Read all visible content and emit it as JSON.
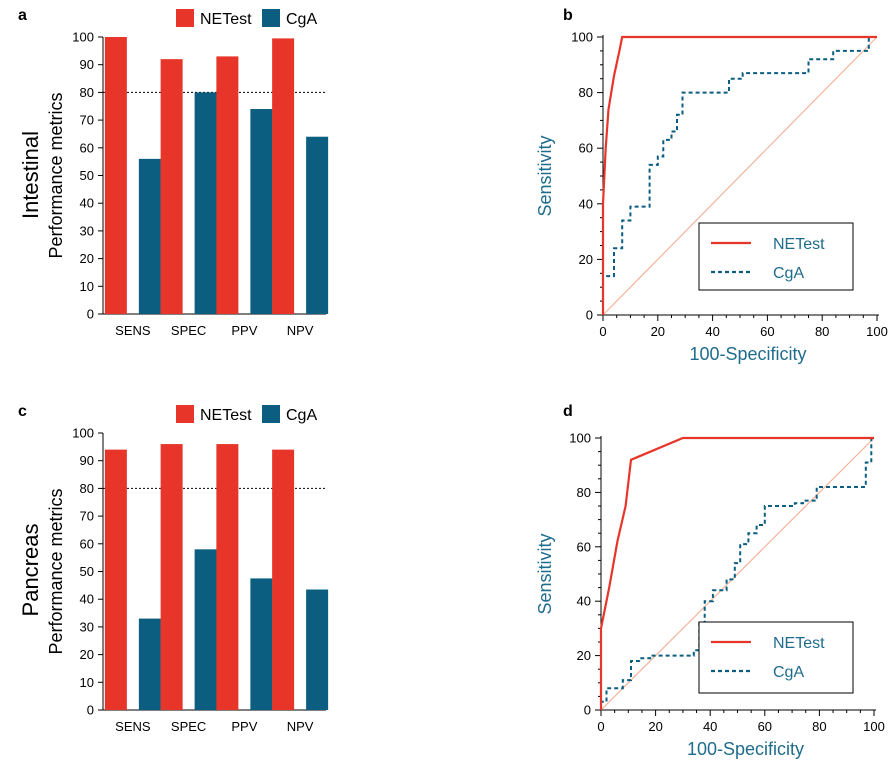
{
  "colors": {
    "netest": "#e8352a",
    "cga": "#0b5e80",
    "diag": "#f3b39c",
    "axis": "#000000",
    "roc_axis_text": "#1f6c8c"
  },
  "row_labels": [
    "Intestinal",
    "Pancreas"
  ],
  "chart_data": [
    {
      "panel": "a",
      "type": "bar",
      "categories": [
        "SENS",
        "SPEC",
        "PPV",
        "NPV"
      ],
      "series": [
        {
          "name": "NETest",
          "values": [
            100,
            92,
            93,
            99.5
          ]
        },
        {
          "name": "CgA",
          "values": [
            56,
            80,
            74,
            64
          ]
        }
      ],
      "ylabel": "Performance metrics",
      "ylim": [
        0,
        100
      ],
      "yticks": [
        0,
        10,
        20,
        30,
        40,
        50,
        60,
        70,
        80,
        90,
        100
      ],
      "reference_line": 80,
      "legend": "top"
    },
    {
      "panel": "b",
      "type": "line",
      "xlabel": "100-Specificity",
      "ylabel": "Sensitivity",
      "xlim": [
        0,
        100
      ],
      "ylim": [
        0,
        100
      ],
      "xticks": [
        0,
        20,
        40,
        60,
        80,
        100
      ],
      "yticks": [
        0,
        20,
        40,
        60,
        80,
        100
      ],
      "legend": "bottom-right",
      "series": [
        {
          "name": "NETest",
          "points": [
            [
              0,
              0
            ],
            [
              0,
              40
            ],
            [
              1,
              60
            ],
            [
              2,
              74
            ],
            [
              4,
              86
            ],
            [
              6,
              95
            ],
            [
              7,
              100
            ],
            [
              100,
              100
            ]
          ]
        },
        {
          "name": "CgA",
          "points": [
            [
              0,
              0
            ],
            [
              0,
              14
            ],
            [
              4,
              14
            ],
            [
              4,
              24
            ],
            [
              7,
              24
            ],
            [
              7,
              34
            ],
            [
              10,
              34
            ],
            [
              10,
              39
            ],
            [
              17,
              39
            ],
            [
              17,
              54
            ],
            [
              20,
              54
            ],
            [
              20,
              57
            ],
            [
              22,
              57
            ],
            [
              22,
              63
            ],
            [
              25,
              63
            ],
            [
              25,
              66
            ],
            [
              27,
              66
            ],
            [
              27,
              72
            ],
            [
              29,
              72
            ],
            [
              29,
              80
            ],
            [
              46,
              80
            ],
            [
              46,
              85
            ],
            [
              51,
              85
            ],
            [
              51,
              87
            ],
            [
              75,
              87
            ],
            [
              75,
              92
            ],
            [
              84,
              92
            ],
            [
              84,
              95
            ],
            [
              97,
              95
            ],
            [
              97,
              100
            ],
            [
              100,
              100
            ]
          ]
        },
        {
          "name": "",
          "points": [
            [
              0,
              0
            ],
            [
              100,
              100
            ]
          ]
        }
      ]
    },
    {
      "panel": "c",
      "type": "bar",
      "categories": [
        "SENS",
        "SPEC",
        "PPV",
        "NPV"
      ],
      "series": [
        {
          "name": "NETest",
          "values": [
            94,
            96,
            96,
            94
          ]
        },
        {
          "name": "CgA",
          "values": [
            33,
            58,
            47.5,
            43.5
          ]
        }
      ],
      "ylabel": "Performance metrics",
      "ylim": [
        0,
        100
      ],
      "yticks": [
        0,
        10,
        20,
        30,
        40,
        50,
        60,
        70,
        80,
        90,
        100
      ],
      "reference_line": 80,
      "legend": "top"
    },
    {
      "panel": "d",
      "type": "line",
      "xlabel": "100-Specificity",
      "ylabel": "Sensitivity",
      "xlim": [
        0,
        100
      ],
      "ylim": [
        0,
        100
      ],
      "xticks": [
        0,
        20,
        40,
        60,
        80,
        100
      ],
      "yticks": [
        0,
        20,
        40,
        60,
        80,
        100
      ],
      "legend": "bottom-right",
      "series": [
        {
          "name": "NETest",
          "points": [
            [
              0,
              0
            ],
            [
              0,
              30
            ],
            [
              3,
              45
            ],
            [
              6,
              62
            ],
            [
              9,
              75
            ],
            [
              11,
              92
            ],
            [
              30,
              100
            ],
            [
              100,
              100
            ]
          ]
        },
        {
          "name": "CgA",
          "points": [
            [
              0,
              0
            ],
            [
              0,
              3
            ],
            [
              2,
              3
            ],
            [
              2,
              8
            ],
            [
              8,
              8
            ],
            [
              8,
              11
            ],
            [
              11,
              11
            ],
            [
              11,
              18
            ],
            [
              14,
              18
            ],
            [
              14,
              19
            ],
            [
              18,
              19
            ],
            [
              18,
              20
            ],
            [
              34,
              20
            ],
            [
              34,
              22
            ],
            [
              36,
              22
            ],
            [
              36,
              32
            ],
            [
              38,
              32
            ],
            [
              38,
              40
            ],
            [
              41,
              40
            ],
            [
              41,
              44
            ],
            [
              46,
              44
            ],
            [
              46,
              48
            ],
            [
              49,
              48
            ],
            [
              49,
              54
            ],
            [
              51,
              54
            ],
            [
              51,
              61
            ],
            [
              54,
              61
            ],
            [
              54,
              65
            ],
            [
              57,
              65
            ],
            [
              57,
              68
            ],
            [
              60,
              68
            ],
            [
              60,
              75
            ],
            [
              71,
              75
            ],
            [
              71,
              76
            ],
            [
              74,
              76
            ],
            [
              74,
              77
            ],
            [
              79,
              77
            ],
            [
              79,
              82
            ],
            [
              97,
              82
            ],
            [
              97,
              91
            ],
            [
              99,
              91
            ],
            [
              99,
              100
            ],
            [
              100,
              100
            ]
          ]
        },
        {
          "name": "",
          "points": [
            [
              0,
              0
            ],
            [
              100,
              100
            ]
          ]
        }
      ]
    }
  ]
}
